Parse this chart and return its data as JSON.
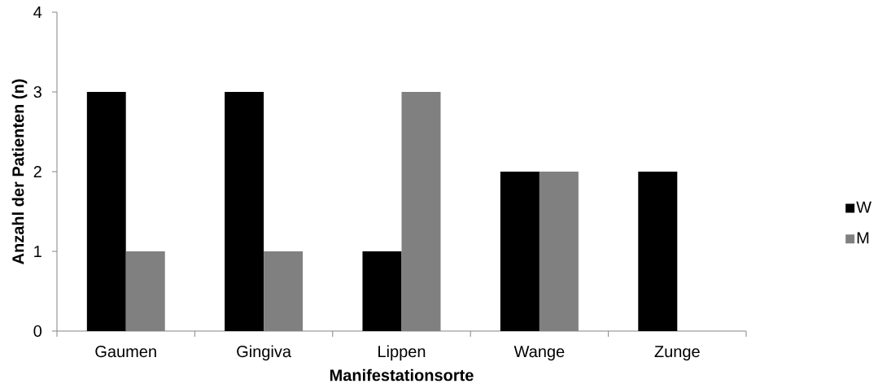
{
  "chart_data": {
    "type": "bar",
    "xlabel": "Manifestationsorte",
    "ylabel": "Anzahl der Patienten (n)",
    "categories": [
      "Gaumen",
      "Gingiva",
      "Lippen",
      "Wange",
      "Zunge"
    ],
    "series": [
      {
        "name": "W",
        "color": "#000000",
        "values": [
          3,
          3,
          1,
          2,
          2
        ]
      },
      {
        "name": "M",
        "color": "#808080",
        "values": [
          1,
          1,
          3,
          2,
          0
        ]
      }
    ],
    "ylim": [
      0,
      4
    ],
    "yticks": [
      0,
      1,
      2,
      3,
      4
    ],
    "legend": "right"
  }
}
